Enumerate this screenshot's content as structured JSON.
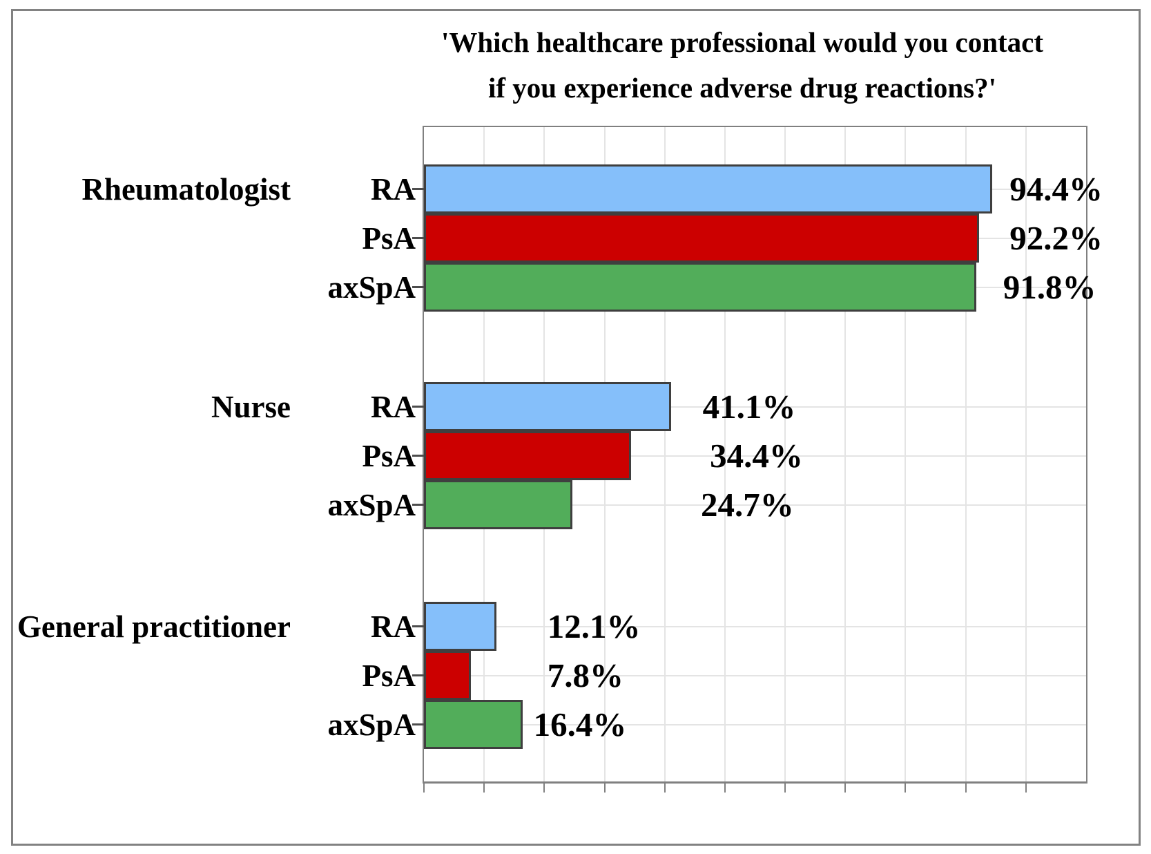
{
  "title": {
    "line1": "'Which healthcare professional would you contact",
    "line2": "if you experience adverse drug reactions?'"
  },
  "chart_data": {
    "type": "bar",
    "orientation": "horizontal",
    "title": "'Which healthcare professional would you contact if you experience adverse drug reactions?'",
    "xlabel": "",
    "ylabel": "",
    "xlim": [
      0,
      110
    ],
    "x_tick_step": 10,
    "x_tick_labels_visible": false,
    "grid": true,
    "legend": "none",
    "series_colors": {
      "RA": "#85BFFA",
      "PsA": "#CC0000",
      "axSpA": "#52AD5A"
    },
    "bar_border_color": "#3F3F3F",
    "groups": [
      {
        "category": "Rheumatologist",
        "bars": [
          {
            "series": "RA",
            "value": 94.4,
            "label": "94.4%",
            "label_x": 97.3
          },
          {
            "series": "PsA",
            "value": 92.2,
            "label": "92.2%",
            "label_x": 97.3
          },
          {
            "series": "axSpA",
            "value": 91.8,
            "label": "91.8%",
            "label_x": 96.2
          }
        ]
      },
      {
        "category": "Nurse",
        "bars": [
          {
            "series": "RA",
            "value": 41.1,
            "label": "41.1%",
            "label_x": 46.3
          },
          {
            "series": "PsA",
            "value": 34.4,
            "label": "34.4%",
            "label_x": 47.5
          },
          {
            "series": "axSpA",
            "value": 24.7,
            "label": "24.7%",
            "label_x": 46.0
          }
        ]
      },
      {
        "category": "General practitioner",
        "bars": [
          {
            "series": "RA",
            "value": 12.1,
            "label": "12.1%",
            "label_x": 20.5
          },
          {
            "series": "PsA",
            "value": 7.8,
            "label": "7.8%",
            "label_x": 20.5
          },
          {
            "series": "axSpA",
            "value": 16.4,
            "label": "16.4%",
            "label_x": 18.2
          }
        ]
      }
    ]
  }
}
